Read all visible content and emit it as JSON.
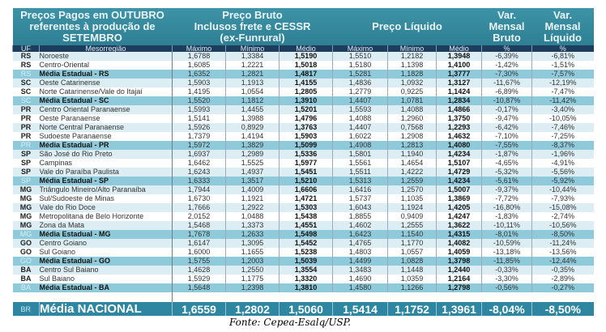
{
  "header": {
    "title": [
      "Preços Pagos em OUTUBRO",
      "referentes à produção de",
      "SETEMBRO"
    ],
    "bruto": [
      "Preço Bruto",
      "Inclusos frete e CESSR",
      "(ex-Funrural)"
    ],
    "liquido": "Preço Líquido",
    "var_bruto": [
      "Var.",
      "Mensal",
      "Bruto"
    ],
    "var_liquido": [
      "Var.",
      "Mensal",
      "Líquido"
    ]
  },
  "columns": [
    "UF",
    "Mesorregião",
    "Máximo",
    "Mínimo",
    "Médio",
    "Máximo",
    "Mínimo",
    "Médio",
    "%",
    "%"
  ],
  "rows": [
    [
      "RS",
      "Noroeste",
      "1,6788",
      "1,3384",
      "1,5190",
      "1,5510",
      "1,2182",
      "1,3948",
      "-6,39%",
      "-6,81%"
    ],
    [
      "RS",
      "Centro-Oriental",
      "1,6085",
      "1,2221",
      "1,5018",
      "1,5180",
      "1,1398",
      "1,4100",
      "-1,42%",
      "-1,51%"
    ],
    [
      "RS",
      "Média Estadual - RS",
      "1,6352",
      "1,2821",
      "1,4817",
      "1,5281",
      "1,1828",
      "1,3777",
      "-7,30%",
      "-7,57%"
    ],
    [
      "SC",
      "Oeste Catarinense",
      "1,5903",
      "1,1913",
      "1,4155",
      "1,4836",
      "1,0932",
      "1,3127",
      "-11,67%",
      "-12,19%"
    ],
    [
      "SC",
      "Norte Catarinense/Vale do Itajaí",
      "1,4195",
      "1,0554",
      "1,2805",
      "1,2779",
      "0,9225",
      "1,1424",
      "-6,89%",
      "-7,47%"
    ],
    [
      "SC",
      "Média Estadual - SC",
      "1,5520",
      "1,1812",
      "1,3910",
      "1,4407",
      "1,0781",
      "1,2834",
      "-10,87%",
      "-11,42%"
    ],
    [
      "PR",
      "Centro Oriental Paranaense",
      "1,5993",
      "1,4455",
      "1,5201",
      "1,5593",
      "1,4088",
      "1,4866",
      "-0,17%",
      "-3,40%"
    ],
    [
      "PR",
      "Oeste Paranaense",
      "1,5141",
      "1,3988",
      "1,4796",
      "1,4088",
      "1,2960",
      "1,3750",
      "-9,47%",
      "-10,05%"
    ],
    [
      "PR",
      "Norte Central Paranaense",
      "1,5926",
      "0,8929",
      "1,3763",
      "1,4407",
      "0,7568",
      "1,2293",
      "-6,42%",
      "-7,46%"
    ],
    [
      "PR",
      "Sudoeste Paranaense",
      "1,7379",
      "1,4194",
      "1,5903",
      "1,6022",
      "1,2908",
      "1,4632",
      "-7,10%",
      "-7,25%"
    ],
    [
      "PR",
      "Média Estadual - PR",
      "1,5972",
      "1,3829",
      "1,5099",
      "1,4908",
      "1,2813",
      "1,4080",
      "-7,55%",
      "-8,37%"
    ],
    [
      "SP",
      "São José do Rio Preto",
      "1,6937",
      "1,2989",
      "1,5336",
      "1,5801",
      "1,1940",
      "1,4234",
      "-1,87%",
      "-1,96%"
    ],
    [
      "SP",
      "Campinas",
      "1,6462",
      "1,5525",
      "1,5977",
      "1,5561",
      "1,4654",
      "1,5107",
      "-4,65%",
      "-4,91%"
    ],
    [
      "SP",
      "Vale do Paraíba Paulista",
      "1,6243",
      "1,4937",
      "1,5451",
      "1,5511",
      "1,4222",
      "1,4729",
      "-5,32%",
      "-5,56%"
    ],
    [
      "SP",
      "Média Estadual - SP",
      "1,6333",
      "1,3517",
      "1,5210",
      "1,5313",
      "1,2559",
      "1,4234",
      "-5,61%",
      "-5,92%"
    ],
    [
      "MG",
      "Triângulo Mineiro/Alto Paranaíba",
      "1,7944",
      "1,4009",
      "1,6606",
      "1,6416",
      "1,2570",
      "1,5007",
      "-9,37%",
      "-10,44%"
    ],
    [
      "MG",
      "Sul/Sudoeste de Minas",
      "1,6730",
      "1,1921",
      "1,4721",
      "1,5737",
      "1,1035",
      "1,3869",
      "-7,72%",
      "-7,93%"
    ],
    [
      "MG",
      "Vale do Rio Doce",
      "1,7666",
      "1,2922",
      "1,5303",
      "1,6043",
      "1,1924",
      "1,4205",
      "-16,80%",
      "-15,08%"
    ],
    [
      "MG",
      "Metropolitana de Belo Horizonte",
      "2,0152",
      "1,0488",
      "1,5438",
      "1,8855",
      "0,9409",
      "1,4247",
      "-1,83%",
      "-2,74%"
    ],
    [
      "MG",
      "Zona da Mata",
      "1,5468",
      "1,3373",
      "1,4551",
      "1,4602",
      "1,2555",
      "1,3622",
      "-10,11%",
      "-10,56%"
    ],
    [
      "MG",
      "Média Estadual - MG",
      "1,7678",
      "1,2633",
      "1,5498",
      "1,6423",
      "1,1540",
      "1,4315",
      "-8,01%",
      "-8,50%"
    ],
    [
      "GO",
      "Centro Goiano",
      "1,6147",
      "1,3095",
      "1,5452",
      "1,4765",
      "1,1770",
      "1,4082",
      "-10,59%",
      "-11,24%"
    ],
    [
      "GO",
      "Sul Goiano",
      "1,6000",
      "1,1655",
      "1,5238",
      "1,4803",
      "1,0557",
      "1,4059",
      "-13,18%",
      "-13,56%"
    ],
    [
      "GO",
      "Média Estadual - GO",
      "1,5755",
      "1,2003",
      "1,5039",
      "1,4499",
      "1,0828",
      "1,3798",
      "-11,85%",
      "-12,44%"
    ],
    [
      "BA",
      "Centro Sul Baiano",
      "1,4628",
      "1,2550",
      "1,3554",
      "1,3483",
      "1,1448",
      "1,2440",
      "-0,33%",
      "-0,35%"
    ],
    [
      "BA",
      "Sul Baiano",
      "1,5929",
      "1,1775",
      "1,3320",
      "1,4690",
      "1,0359",
      "1,2164",
      "-3,30%",
      "-2,89%"
    ],
    [
      "BA",
      "Média Estadual - BA",
      "1,5648",
      "1,2398",
      "1,3810",
      "1,4580",
      "1,1266",
      "1,2798",
      "-0,56%",
      "-0,27%"
    ]
  ],
  "footer": [
    "BR",
    "Média NACIONAL",
    "1,6559",
    "1,2802",
    "1,5060",
    "1,5414",
    "1,1752",
    "1,3961",
    "-8,04%",
    "-8,50%"
  ],
  "source": "Fonte: Cepea-Esalq/USP.",
  "colors": {
    "header": "#3489a0",
    "column_header": "#1e3d5c",
    "row_alt": "#dcedf3",
    "state_average": "#8fcadb",
    "footer": "#2e86a0"
  }
}
